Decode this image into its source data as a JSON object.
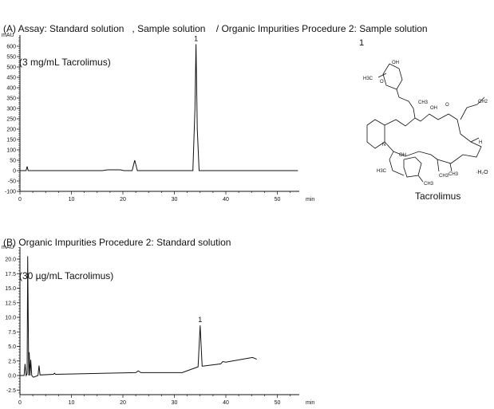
{
  "panel_a": {
    "title_line1": "(A) Assay: Standard solution   , Sample solution    / Organic Impurities Procedure 2: Sample solution",
    "title_line2": "(3 mg/mL Tacrolimus)"
  },
  "panel_b": {
    "title_line1": "(B) Organic Impurities Procedure 2: Standard solution",
    "title_line2": "(30 µg/mL Tacrolimus)"
  },
  "structure": {
    "peak_number": "1",
    "compound_name": "Tacrolimus",
    "hydrate": "·H₂O",
    "atom_labels": [
      "OH",
      "H",
      "H3C",
      "O",
      "H",
      "CH3",
      "H",
      "OH",
      "O",
      "CH2",
      "H",
      "O",
      "O",
      "H",
      "CH3",
      "H",
      "CH3",
      "N",
      "O",
      "OH",
      "O",
      "H",
      "O",
      "H",
      "H3C",
      "H",
      "H",
      "O",
      "CH3",
      "O",
      "CH3",
      "H",
      "CH3"
    ]
  },
  "chart_data": [
    {
      "type": "line",
      "panel": "A",
      "ylabel": "mAU",
      "xlabel": "min",
      "xlim": [
        0,
        54
      ],
      "ylim": [
        -100,
        640
      ],
      "x_ticks": [
        0,
        10,
        20,
        30,
        40,
        50
      ],
      "y_ticks": [
        -100,
        -50,
        0,
        50,
        100,
        150,
        200,
        250,
        300,
        350,
        400,
        450,
        500,
        550,
        600
      ],
      "grid": false,
      "peak_labels": [
        {
          "label": "1",
          "x": 34.2,
          "y": 610
        }
      ],
      "series": [
        {
          "points": [
            [
              0,
              0
            ],
            [
              1.2,
              0
            ],
            [
              1.4,
              20
            ],
            [
              1.6,
              0
            ],
            [
              16,
              0
            ],
            [
              17,
              4
            ],
            [
              19.5,
              4
            ],
            [
              20.2,
              0
            ],
            [
              21.8,
              0
            ],
            [
              22.3,
              50
            ],
            [
              22.8,
              0
            ],
            [
              33.6,
              0
            ],
            [
              34.0,
              300
            ],
            [
              34.2,
              610
            ],
            [
              34.45,
              200
            ],
            [
              34.8,
              0
            ],
            [
              54,
              0
            ]
          ]
        }
      ]
    },
    {
      "type": "line",
      "panel": "B",
      "ylabel": "mAU",
      "xlabel": "min",
      "xlim": [
        0,
        54
      ],
      "ylim": [
        -3.5,
        22
      ],
      "x_ticks": [
        0,
        10,
        20,
        30,
        40,
        50
      ],
      "y_ticks": [
        -2.5,
        0.0,
        2.5,
        5.0,
        7.5,
        10.0,
        12.5,
        15.0,
        17.5,
        20.0
      ],
      "grid": false,
      "peak_labels": [
        {
          "label": "1",
          "x": 35.0,
          "y": 8.6
        }
      ],
      "series": [
        {
          "points": [
            [
              0,
              0
            ],
            [
              0.8,
              0
            ],
            [
              1.0,
              2.0
            ],
            [
              1.2,
              0
            ],
            [
              1.4,
              0.3
            ],
            [
              1.5,
              20.5
            ],
            [
              1.7,
              0
            ],
            [
              1.8,
              4.0
            ],
            [
              1.95,
              0
            ],
            [
              2.1,
              2.7
            ],
            [
              2.3,
              0
            ],
            [
              2.6,
              -0.3
            ],
            [
              3.5,
              0
            ],
            [
              3.7,
              1.7
            ],
            [
              3.9,
              0.1
            ],
            [
              6.5,
              0.2
            ],
            [
              6.7,
              0.4
            ],
            [
              6.9,
              0.2
            ],
            [
              22.5,
              0.5
            ],
            [
              23.0,
              0.8
            ],
            [
              23.5,
              0.5
            ],
            [
              31.5,
              0.5
            ],
            [
              34.6,
              1.5
            ],
            [
              35.0,
              8.6
            ],
            [
              35.4,
              1.6
            ],
            [
              39.0,
              2.0
            ],
            [
              39.4,
              2.4
            ],
            [
              40.0,
              2.3
            ],
            [
              44.5,
              3.0
            ],
            [
              45.2,
              3.1
            ],
            [
              46,
              2.8
            ]
          ]
        }
      ]
    }
  ]
}
